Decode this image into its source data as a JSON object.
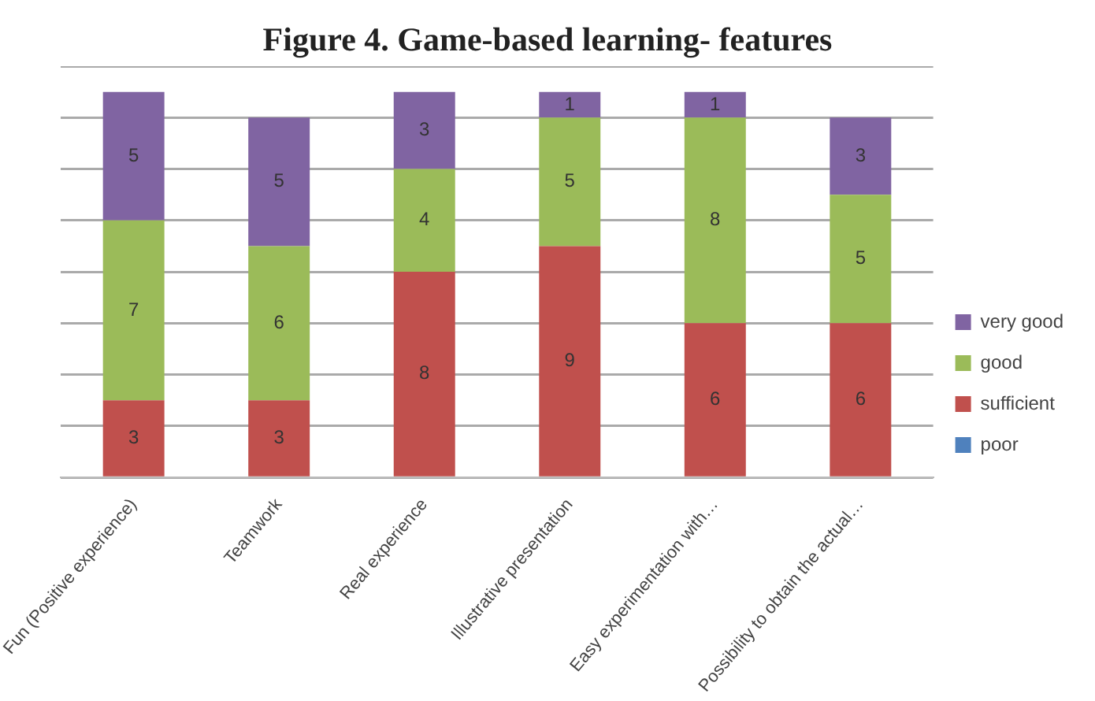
{
  "chart_data": {
    "type": "bar",
    "title": "Figure 4. Game-based learning- features",
    "categories": [
      "Fun (Positive experience)",
      "Teamwork",
      "Real experience",
      "Illustrative presentation",
      "Easy experimentation with…",
      "Possibility to obtain the actual…"
    ],
    "stacked": true,
    "ylim": [
      0,
      16
    ],
    "yticks": [
      {
        "value": 0,
        "label": null
      },
      {
        "value": 2,
        "label": null
      },
      {
        "value": 4,
        "label": null
      },
      {
        "value": 6,
        "label": null
      },
      {
        "value": 8,
        "label": null
      },
      {
        "value": 10,
        "label": null
      },
      {
        "value": 12,
        "label": null
      },
      {
        "value": 14,
        "label": null
      },
      {
        "value": 16,
        "label": null
      }
    ],
    "tick_labels": "x",
    "grid": "y",
    "legend": "right",
    "series": [
      {
        "name": "poor",
        "color": "#4f81bd",
        "values": [
          0,
          0,
          0,
          0,
          0,
          0
        ],
        "value_labels": [
          null,
          null,
          null,
          null,
          null,
          null
        ]
      },
      {
        "name": "sufficient",
        "color": "#c0504d",
        "values": [
          3,
          3,
          8,
          9,
          6,
          6
        ],
        "value_labels": [
          "3",
          "3",
          "8",
          "9",
          "6",
          "6"
        ]
      },
      {
        "name": "good",
        "color": "#9bbb59",
        "values": [
          7,
          6,
          4,
          5,
          8,
          5
        ],
        "value_labels": [
          "7",
          "6",
          "4",
          "5",
          "8",
          "5"
        ]
      },
      {
        "name": "very good",
        "color": "#8064a2",
        "values": [
          5,
          5,
          3,
          1,
          1,
          3
        ],
        "value_labels": [
          "5",
          "5",
          "3",
          "1",
          "1",
          "3"
        ]
      }
    ]
  }
}
